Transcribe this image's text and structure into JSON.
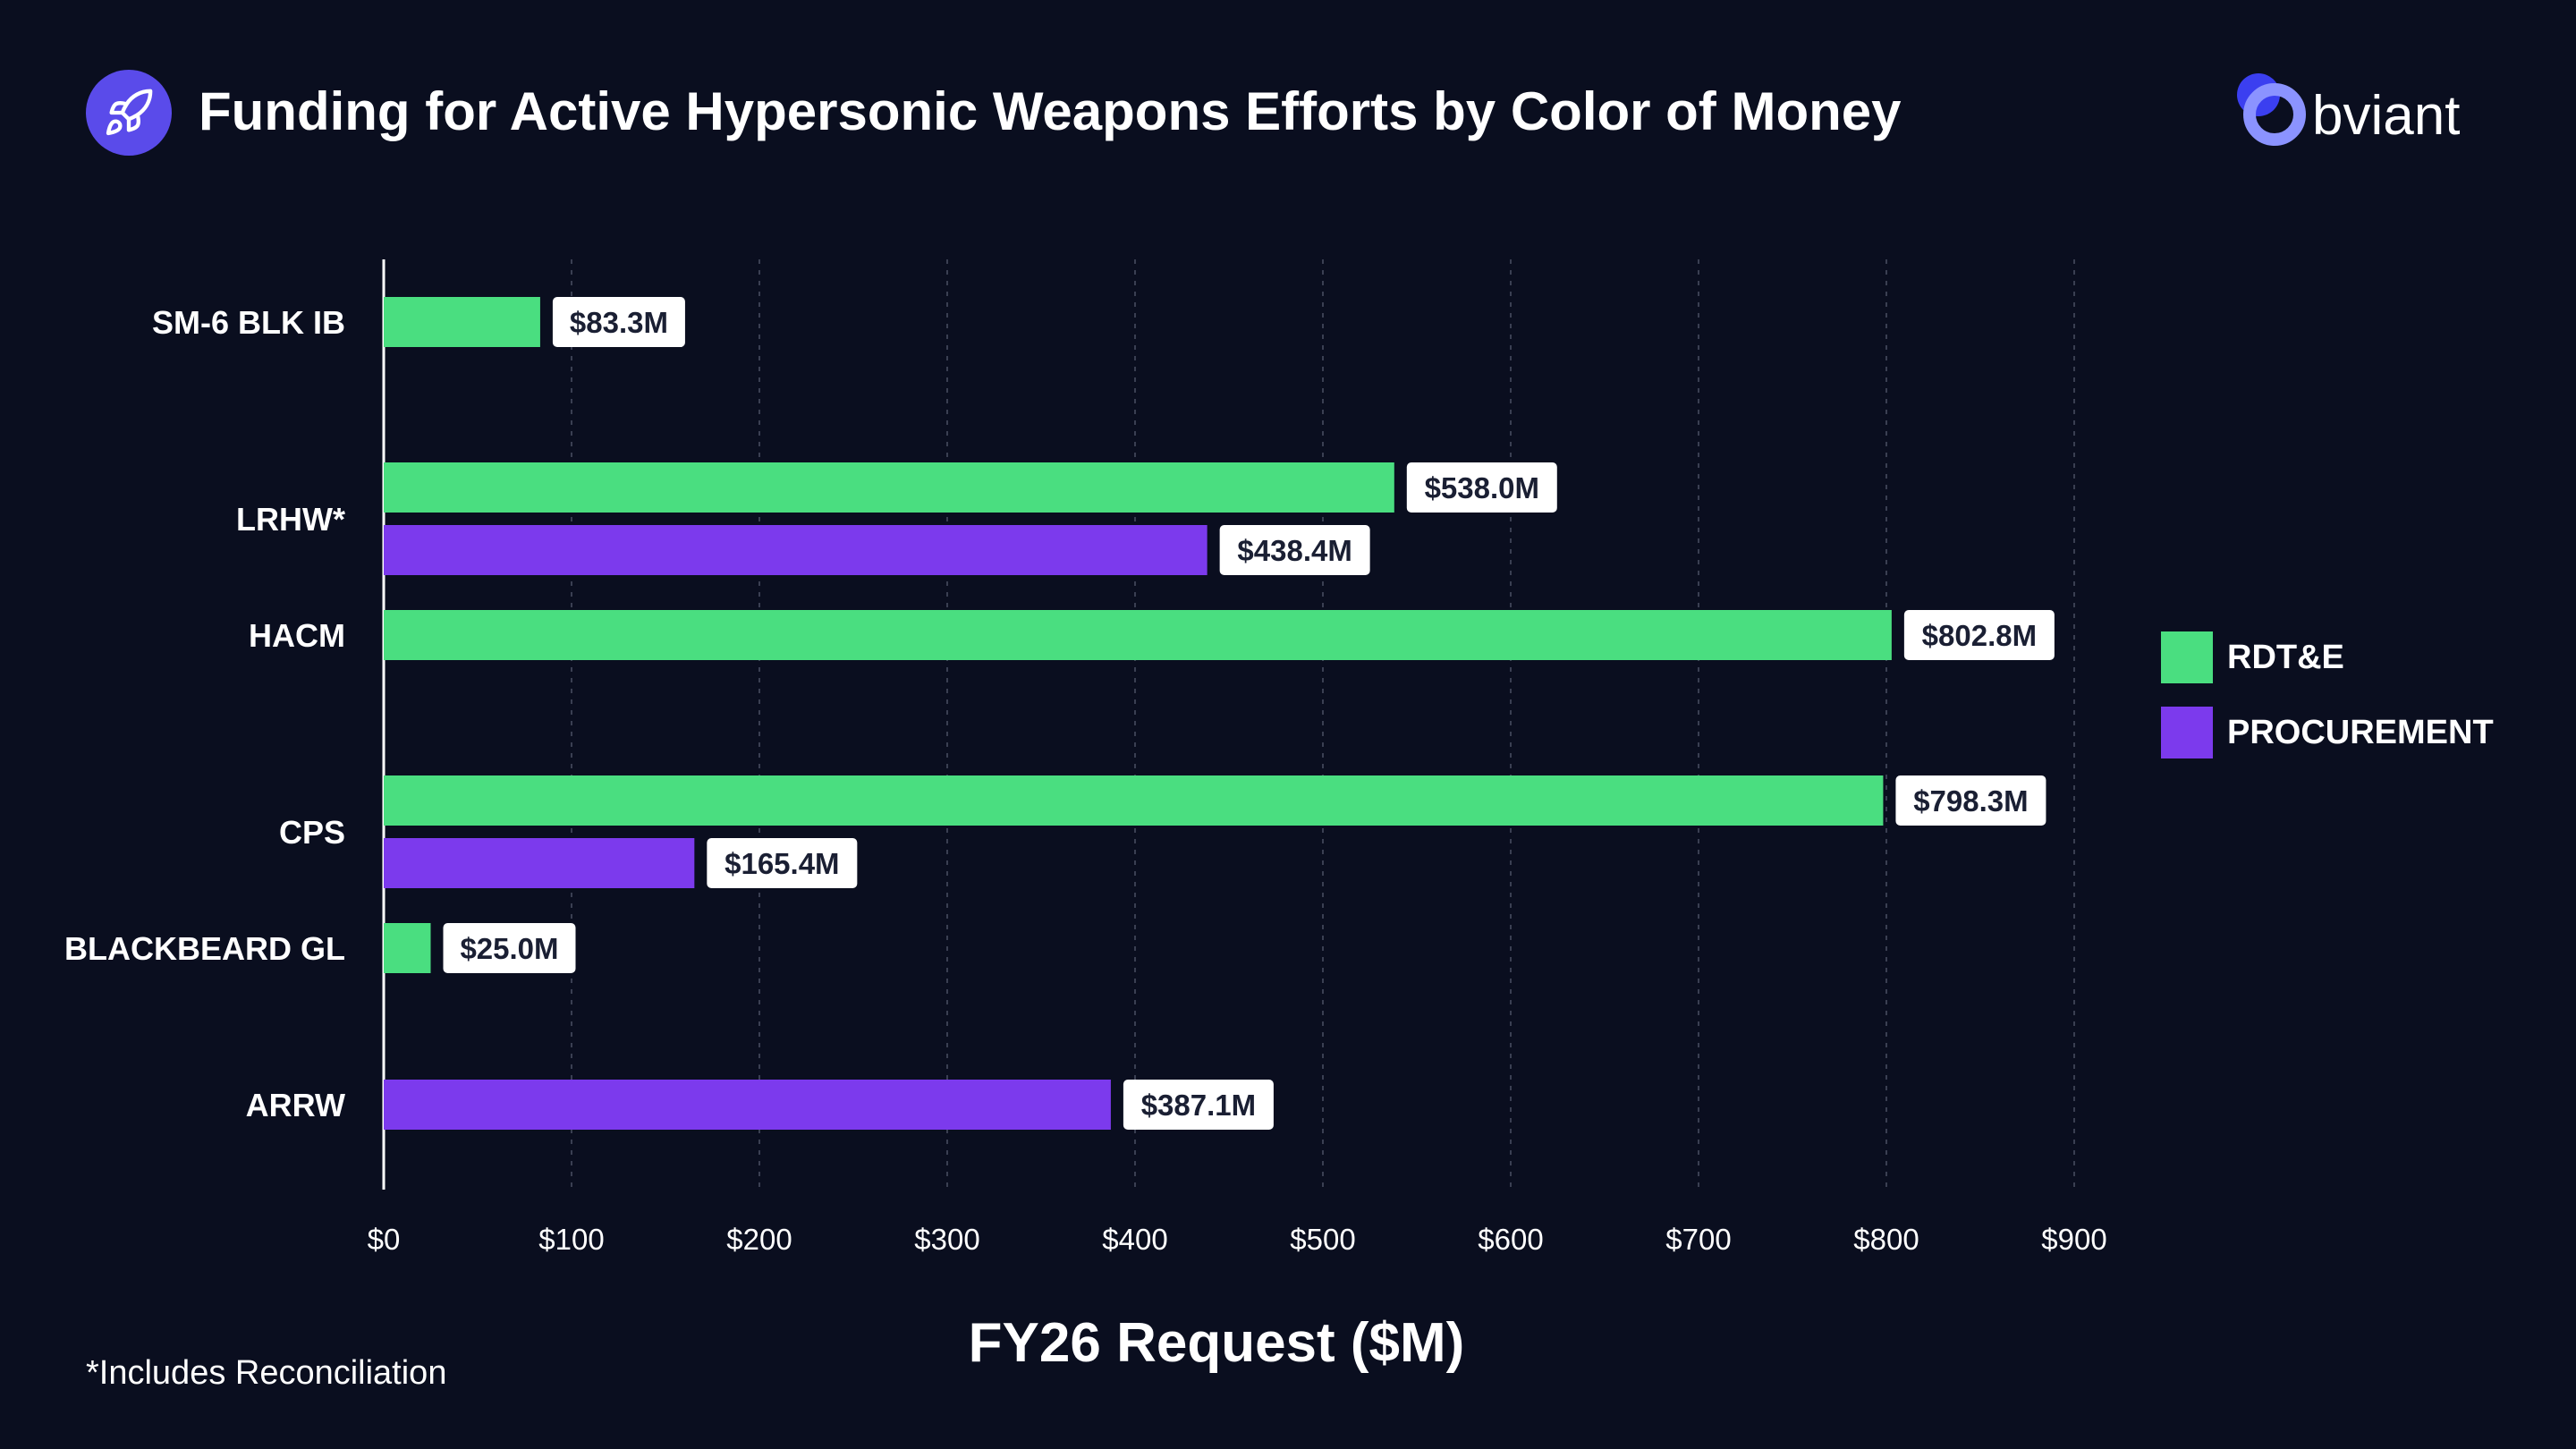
{
  "header": {
    "title": "Funding for Active Hypersonic Weapons Efforts by Color of Money",
    "icon": "rocket-icon"
  },
  "logo": {
    "text": "bviant",
    "icon": "obviant-logo-icon"
  },
  "footnote": "*Includes Reconciliation",
  "colors": {
    "rdte": "#4ade80",
    "procurement": "#7c3aed",
    "background": "#0a0e1f"
  },
  "chart_data": {
    "type": "bar",
    "orientation": "horizontal",
    "categories": [
      "SM-6 BLK IB",
      "LRHW*",
      "HACM",
      "CPS",
      "BLACKBEARD GL",
      "ARRW"
    ],
    "series": [
      {
        "name": "RDT&E",
        "color": "#4ade80",
        "values": [
          83.3,
          538.0,
          802.8,
          798.3,
          25.0,
          null
        ],
        "labels": [
          "$83.3M",
          "$538.0M",
          "$802.8M",
          "$798.3M",
          "$25.0M",
          null
        ]
      },
      {
        "name": "PROCUREMENT",
        "color": "#7c3aed",
        "values": [
          null,
          438.4,
          null,
          165.4,
          null,
          387.1
        ],
        "labels": [
          null,
          "$438.4M",
          null,
          "$165.4M",
          null,
          "$387.1M"
        ]
      }
    ],
    "xlabel": "FY26 Request ($M)",
    "xlim": [
      0,
      900
    ],
    "xticks": [
      0,
      100,
      200,
      300,
      400,
      500,
      600,
      700,
      800,
      900
    ],
    "xtick_labels": [
      "$0",
      "$100",
      "$200",
      "$300",
      "$400",
      "$500",
      "$600",
      "$700",
      "$800",
      "$900"
    ],
    "grid": "vertical-dashed",
    "legend": "right"
  }
}
